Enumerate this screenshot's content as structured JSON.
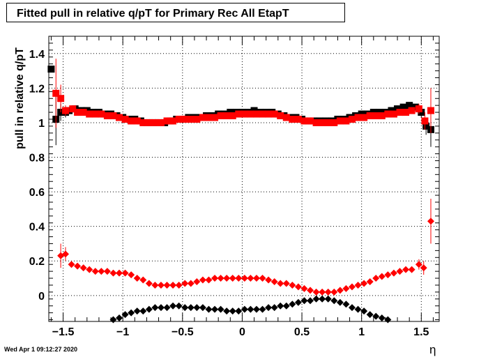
{
  "chart_data": {
    "type": "scatter",
    "title": "Fitted pull in relative q/pT  for Primary Rec All EtapT",
    "ylabel": "pull in relative q/pT",
    "xlabel": "η",
    "xlim": [
      -1.62,
      1.65
    ],
    "ylim": [
      -0.15,
      1.5
    ],
    "x_ticks": [
      -1.5,
      -1,
      -0.5,
      0,
      0.5,
      1,
      1.5
    ],
    "x_tick_labels": [
      "−1.5",
      "−1",
      "−0.5",
      "0",
      "0.5",
      "1",
      "1.5"
    ],
    "y_ticks": [
      0,
      0.2,
      0.4,
      0.6,
      0.8,
      1,
      1.2,
      1.4
    ],
    "y_tick_labels": [
      "0",
      "0.2",
      "0.4",
      "0.6",
      "0.8",
      "1",
      "1.2",
      "1.4"
    ],
    "grid": true,
    "series": [
      {
        "marker": "square",
        "color": "#000000",
        "points": [
          [
            -1.6,
            1.31,
            0
          ],
          [
            -1.56,
            1.02,
            0.15
          ],
          [
            -1.52,
            1.06,
            0.05
          ],
          [
            -1.48,
            1.06,
            0.03
          ],
          [
            -1.45,
            1.07,
            0
          ],
          [
            -1.4,
            1.08,
            0
          ],
          [
            -1.35,
            1.07,
            0
          ],
          [
            -1.3,
            1.07,
            0
          ],
          [
            -1.25,
            1.06,
            0
          ],
          [
            -1.2,
            1.06,
            0
          ],
          [
            -1.15,
            1.05,
            0
          ],
          [
            -1.1,
            1.05,
            0
          ],
          [
            -1.05,
            1.04,
            0
          ],
          [
            -1.0,
            1.03,
            0
          ],
          [
            -0.95,
            1.02,
            0
          ],
          [
            -0.9,
            1.02,
            0
          ],
          [
            -0.85,
            1.01,
            0
          ],
          [
            -0.8,
            1.0,
            0
          ],
          [
            -0.75,
            1.0,
            0
          ],
          [
            -0.7,
            1.0,
            0
          ],
          [
            -0.65,
            1.0,
            0
          ],
          [
            -0.6,
            1.01,
            0
          ],
          [
            -0.55,
            1.02,
            0
          ],
          [
            -0.5,
            1.02,
            0
          ],
          [
            -0.45,
            1.03,
            0
          ],
          [
            -0.4,
            1.03,
            0
          ],
          [
            -0.35,
            1.03,
            0
          ],
          [
            -0.3,
            1.04,
            0
          ],
          [
            -0.25,
            1.04,
            0
          ],
          [
            -0.2,
            1.05,
            0
          ],
          [
            -0.15,
            1.05,
            0
          ],
          [
            -0.1,
            1.06,
            0
          ],
          [
            -0.05,
            1.06,
            0
          ],
          [
            0.0,
            1.06,
            0
          ],
          [
            0.05,
            1.06,
            0
          ],
          [
            0.1,
            1.07,
            0
          ],
          [
            0.15,
            1.06,
            0
          ],
          [
            0.2,
            1.06,
            0
          ],
          [
            0.25,
            1.06,
            0
          ],
          [
            0.3,
            1.05,
            0
          ],
          [
            0.35,
            1.04,
            0
          ],
          [
            0.4,
            1.03,
            0
          ],
          [
            0.45,
            1.03,
            0
          ],
          [
            0.5,
            1.02,
            0
          ],
          [
            0.55,
            1.01,
            0
          ],
          [
            0.6,
            1.01,
            0
          ],
          [
            0.65,
            1.01,
            0
          ],
          [
            0.7,
            1.01,
            0
          ],
          [
            0.75,
            1.01,
            0
          ],
          [
            0.8,
            1.02,
            0
          ],
          [
            0.85,
            1.02,
            0
          ],
          [
            0.9,
            1.03,
            0
          ],
          [
            0.95,
            1.04,
            0
          ],
          [
            1.0,
            1.05,
            0
          ],
          [
            1.05,
            1.05,
            0
          ],
          [
            1.1,
            1.06,
            0
          ],
          [
            1.15,
            1.06,
            0
          ],
          [
            1.2,
            1.06,
            0
          ],
          [
            1.25,
            1.07,
            0
          ],
          [
            1.3,
            1.08,
            0
          ],
          [
            1.35,
            1.09,
            0
          ],
          [
            1.4,
            1.1,
            0
          ],
          [
            1.45,
            1.09,
            0
          ],
          [
            1.5,
            1.06,
            0.03
          ],
          [
            1.54,
            0.98,
            0.05
          ],
          [
            1.58,
            0.96,
            0.1
          ]
        ]
      },
      {
        "marker": "square",
        "color": "#ff0000",
        "points": [
          [
            -1.56,
            1.17,
            0.2
          ],
          [
            -1.52,
            1.14,
            0.08
          ],
          [
            -1.48,
            1.07,
            0.03
          ],
          [
            -1.42,
            1.08,
            0
          ],
          [
            -1.38,
            1.06,
            0
          ],
          [
            -1.33,
            1.06,
            0
          ],
          [
            -1.28,
            1.05,
            0
          ],
          [
            -1.23,
            1.05,
            0
          ],
          [
            -1.18,
            1.05,
            0
          ],
          [
            -1.13,
            1.04,
            0
          ],
          [
            -1.08,
            1.04,
            0
          ],
          [
            -1.03,
            1.03,
            0
          ],
          [
            -0.98,
            1.02,
            0
          ],
          [
            -0.93,
            1.01,
            0
          ],
          [
            -0.88,
            1.01,
            0
          ],
          [
            -0.83,
            1.0,
            0
          ],
          [
            -0.78,
            1.0,
            0
          ],
          [
            -0.73,
            1.0,
            0
          ],
          [
            -0.68,
            1.0,
            0
          ],
          [
            -0.63,
            1.01,
            0
          ],
          [
            -0.58,
            1.01,
            0
          ],
          [
            -0.53,
            1.02,
            0
          ],
          [
            -0.48,
            1.02,
            0
          ],
          [
            -0.43,
            1.02,
            0
          ],
          [
            -0.38,
            1.02,
            0
          ],
          [
            -0.33,
            1.03,
            0
          ],
          [
            -0.28,
            1.03,
            0
          ],
          [
            -0.23,
            1.03,
            0
          ],
          [
            -0.18,
            1.04,
            0
          ],
          [
            -0.13,
            1.04,
            0
          ],
          [
            -0.08,
            1.04,
            0
          ],
          [
            -0.03,
            1.05,
            0
          ],
          [
            0.02,
            1.05,
            0
          ],
          [
            0.07,
            1.05,
            0
          ],
          [
            0.12,
            1.05,
            0
          ],
          [
            0.17,
            1.05,
            0
          ],
          [
            0.22,
            1.05,
            0
          ],
          [
            0.27,
            1.05,
            0
          ],
          [
            0.32,
            1.04,
            0
          ],
          [
            0.37,
            1.03,
            0
          ],
          [
            0.42,
            1.02,
            0
          ],
          [
            0.47,
            1.02,
            0
          ],
          [
            0.52,
            1.01,
            0
          ],
          [
            0.57,
            1.01,
            0
          ],
          [
            0.62,
            1.0,
            0
          ],
          [
            0.67,
            1.0,
            0
          ],
          [
            0.72,
            1.0,
            0
          ],
          [
            0.77,
            1.0,
            0
          ],
          [
            0.82,
            1.01,
            0
          ],
          [
            0.87,
            1.01,
            0
          ],
          [
            0.92,
            1.02,
            0
          ],
          [
            0.97,
            1.03,
            0
          ],
          [
            1.02,
            1.03,
            0
          ],
          [
            1.07,
            1.04,
            0
          ],
          [
            1.12,
            1.04,
            0
          ],
          [
            1.17,
            1.04,
            0
          ],
          [
            1.22,
            1.05,
            0
          ],
          [
            1.27,
            1.05,
            0
          ],
          [
            1.32,
            1.06,
            0
          ],
          [
            1.37,
            1.06,
            0
          ],
          [
            1.42,
            1.07,
            0
          ],
          [
            1.48,
            1.08,
            0.03
          ],
          [
            1.53,
            1.01,
            0.05
          ],
          [
            1.58,
            1.07,
            0.13
          ]
        ]
      },
      {
        "marker": "diamond",
        "color": "#ff0000",
        "points": [
          [
            -1.52,
            0.23,
            0.07
          ],
          [
            -1.48,
            0.24,
            0.04
          ],
          [
            -1.43,
            0.18,
            0
          ],
          [
            -1.38,
            0.17,
            0
          ],
          [
            -1.33,
            0.16,
            0
          ],
          [
            -1.28,
            0.15,
            0
          ],
          [
            -1.23,
            0.14,
            0
          ],
          [
            -1.18,
            0.14,
            0
          ],
          [
            -1.13,
            0.14,
            0
          ],
          [
            -1.08,
            0.13,
            0
          ],
          [
            -1.03,
            0.13,
            0
          ],
          [
            -0.98,
            0.13,
            0
          ],
          [
            -0.93,
            0.12,
            0
          ],
          [
            -0.88,
            0.1,
            0
          ],
          [
            -0.83,
            0.09,
            0
          ],
          [
            -0.78,
            0.07,
            0
          ],
          [
            -0.73,
            0.06,
            0
          ],
          [
            -0.68,
            0.06,
            0
          ],
          [
            -0.63,
            0.06,
            0
          ],
          [
            -0.58,
            0.06,
            0
          ],
          [
            -0.53,
            0.06,
            0
          ],
          [
            -0.48,
            0.07,
            0
          ],
          [
            -0.43,
            0.07,
            0
          ],
          [
            -0.38,
            0.08,
            0
          ],
          [
            -0.33,
            0.09,
            0
          ],
          [
            -0.28,
            0.09,
            0
          ],
          [
            -0.23,
            0.1,
            0
          ],
          [
            -0.18,
            0.1,
            0
          ],
          [
            -0.13,
            0.1,
            0
          ],
          [
            -0.08,
            0.1,
            0
          ],
          [
            -0.03,
            0.1,
            0
          ],
          [
            0.02,
            0.1,
            0
          ],
          [
            0.07,
            0.1,
            0
          ],
          [
            0.12,
            0.1,
            0
          ],
          [
            0.17,
            0.1,
            0
          ],
          [
            0.22,
            0.09,
            0
          ],
          [
            0.27,
            0.08,
            0
          ],
          [
            0.32,
            0.07,
            0
          ],
          [
            0.37,
            0.07,
            0
          ],
          [
            0.42,
            0.06,
            0
          ],
          [
            0.47,
            0.05,
            0
          ],
          [
            0.52,
            0.04,
            0
          ],
          [
            0.57,
            0.03,
            0
          ],
          [
            0.62,
            0.02,
            0
          ],
          [
            0.67,
            0.02,
            0
          ],
          [
            0.72,
            0.02,
            0
          ],
          [
            0.77,
            0.02,
            0
          ],
          [
            0.82,
            0.03,
            0
          ],
          [
            0.87,
            0.04,
            0
          ],
          [
            0.92,
            0.05,
            0
          ],
          [
            0.97,
            0.06,
            0
          ],
          [
            1.02,
            0.07,
            0
          ],
          [
            1.07,
            0.08,
            0
          ],
          [
            1.12,
            0.1,
            0
          ],
          [
            1.17,
            0.11,
            0
          ],
          [
            1.22,
            0.12,
            0
          ],
          [
            1.27,
            0.13,
            0
          ],
          [
            1.32,
            0.14,
            0
          ],
          [
            1.37,
            0.15,
            0
          ],
          [
            1.42,
            0.15,
            0
          ],
          [
            1.48,
            0.18,
            0.03
          ],
          [
            1.52,
            0.16,
            0.04
          ],
          [
            1.58,
            0.43,
            0.13
          ]
        ]
      },
      {
        "marker": "diamond",
        "color": "#000000",
        "points": [
          [
            -1.08,
            -0.14,
            0
          ],
          [
            -1.03,
            -0.13,
            0
          ],
          [
            -0.98,
            -0.11,
            0
          ],
          [
            -0.93,
            -0.1,
            0
          ],
          [
            -0.88,
            -0.09,
            0
          ],
          [
            -0.83,
            -0.09,
            0
          ],
          [
            -0.78,
            -0.08,
            0
          ],
          [
            -0.73,
            -0.07,
            0
          ],
          [
            -0.68,
            -0.07,
            0
          ],
          [
            -0.63,
            -0.07,
            0
          ],
          [
            -0.58,
            -0.06,
            0
          ],
          [
            -0.53,
            -0.06,
            0
          ],
          [
            -0.48,
            -0.07,
            0
          ],
          [
            -0.43,
            -0.07,
            0
          ],
          [
            -0.38,
            -0.07,
            0
          ],
          [
            -0.33,
            -0.07,
            0
          ],
          [
            -0.28,
            -0.08,
            0
          ],
          [
            -0.23,
            -0.08,
            0
          ],
          [
            -0.18,
            -0.08,
            0
          ],
          [
            -0.13,
            -0.09,
            0
          ],
          [
            -0.08,
            -0.09,
            0
          ],
          [
            -0.03,
            -0.09,
            0
          ],
          [
            0.02,
            -0.08,
            0
          ],
          [
            0.07,
            -0.08,
            0
          ],
          [
            0.12,
            -0.08,
            0
          ],
          [
            0.17,
            -0.08,
            0
          ],
          [
            0.22,
            -0.07,
            0
          ],
          [
            0.27,
            -0.07,
            0
          ],
          [
            0.32,
            -0.06,
            0
          ],
          [
            0.37,
            -0.06,
            0
          ],
          [
            0.42,
            -0.05,
            0
          ],
          [
            0.47,
            -0.04,
            0
          ],
          [
            0.52,
            -0.03,
            0
          ],
          [
            0.57,
            -0.03,
            0
          ],
          [
            0.62,
            -0.02,
            0
          ],
          [
            0.67,
            -0.02,
            0
          ],
          [
            0.72,
            -0.02,
            0
          ],
          [
            0.77,
            -0.03,
            0
          ],
          [
            0.82,
            -0.04,
            0
          ],
          [
            0.87,
            -0.05,
            0
          ],
          [
            0.92,
            -0.07,
            0
          ],
          [
            0.97,
            -0.08,
            0
          ],
          [
            1.02,
            -0.09,
            0
          ],
          [
            1.07,
            -0.11,
            0
          ],
          [
            1.12,
            -0.12,
            0
          ],
          [
            1.17,
            -0.13,
            0
          ],
          [
            1.22,
            -0.14,
            0
          ]
        ]
      }
    ]
  },
  "footer": {
    "timestamp": "Wed Apr  1 09:12:27 2020"
  }
}
